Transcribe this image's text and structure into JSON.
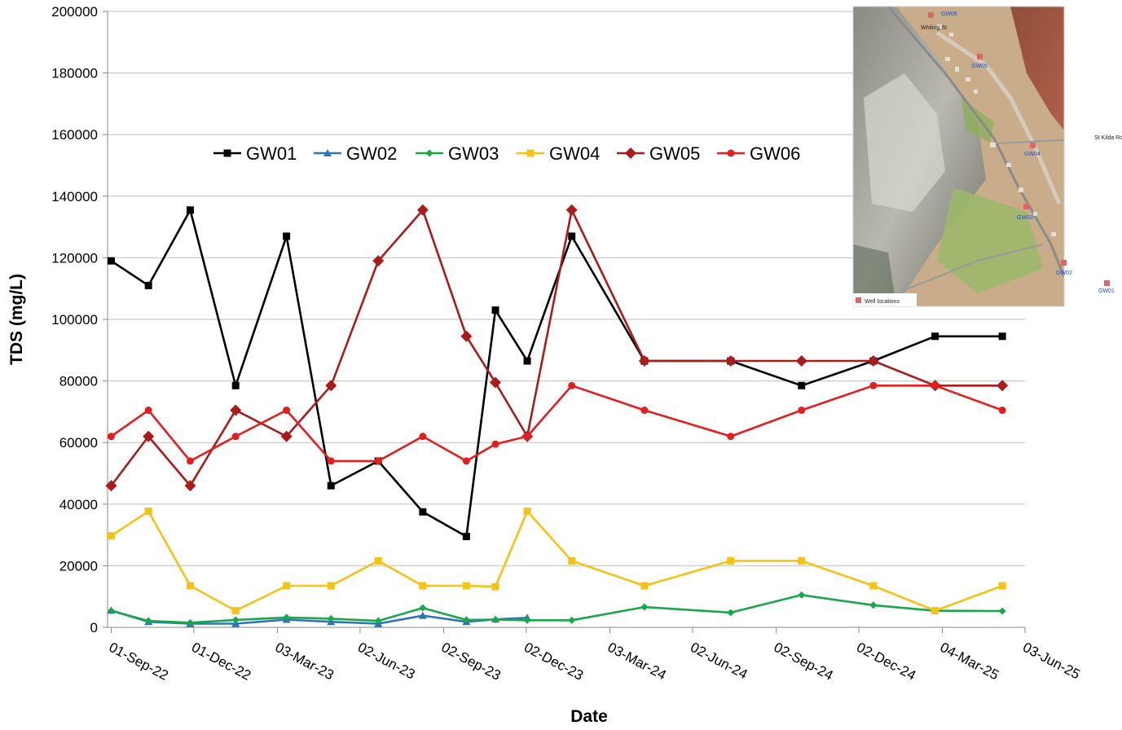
{
  "chart_data": {
    "type": "line",
    "xlabel": "Date",
    "ylabel": "TDS (mg/L)",
    "ylim": [
      0,
      200000
    ],
    "y_ticks": [
      0,
      20000,
      40000,
      60000,
      80000,
      100000,
      120000,
      140000,
      160000,
      180000,
      200000
    ],
    "x_ticks": [
      "01-Sep-22",
      "01-Dec-22",
      "03-Mar-23",
      "02-Jun-23",
      "02-Sep-23",
      "02-Dec-23",
      "03-Mar-24",
      "02-Jun-24",
      "02-Sep-24",
      "02-Dec-24",
      "04-Mar-25",
      "03-Jun-25"
    ],
    "x_tick_dates": [
      "2022-09-01",
      "2022-12-01",
      "2023-03-03",
      "2023-06-02",
      "2023-09-02",
      "2023-12-02",
      "2024-03-03",
      "2024-06-02",
      "2024-09-02",
      "2024-12-02",
      "2025-03-04",
      "2025-06-03"
    ],
    "xlim": [
      "2022-08-28",
      "2025-06-03"
    ],
    "grid": "horizontal",
    "legend_position": "top-center",
    "series": [
      {
        "name": "GW01",
        "color": "#000000",
        "marker": "square",
        "points": [
          [
            "2022-09-01",
            119000
          ],
          [
            "2022-10-12",
            111000
          ],
          [
            "2022-11-27",
            135500
          ],
          [
            "2023-01-16",
            78500
          ],
          [
            "2023-03-13",
            127000
          ],
          [
            "2023-05-01",
            46000
          ],
          [
            "2023-06-22",
            54000
          ],
          [
            "2023-08-10",
            37500
          ],
          [
            "2023-09-27",
            29500
          ],
          [
            "2023-10-29",
            103000
          ],
          [
            "2023-12-03",
            86500
          ],
          [
            "2024-01-21",
            127000
          ],
          [
            "2024-04-10",
            86500
          ],
          [
            "2024-07-14",
            86500
          ],
          [
            "2024-09-30",
            78500
          ],
          [
            "2024-12-18",
            86500
          ],
          [
            "2025-02-24",
            94500
          ],
          [
            "2025-05-09",
            94500
          ]
        ]
      },
      {
        "name": "GW02",
        "color": "#2e75b6",
        "marker": "triangle",
        "points": [
          [
            "2022-09-01",
            5500
          ],
          [
            "2022-10-12",
            1800
          ],
          [
            "2022-11-27",
            1200
          ],
          [
            "2023-01-16",
            1200
          ],
          [
            "2023-03-13",
            2500
          ],
          [
            "2023-05-01",
            1800
          ],
          [
            "2023-06-22",
            1200
          ],
          [
            "2023-08-10",
            3800
          ],
          [
            "2023-09-27",
            1800
          ],
          [
            "2023-10-29",
            2600
          ],
          [
            "2023-12-03",
            3100
          ]
        ]
      },
      {
        "name": "GW03",
        "color": "#1aa64c",
        "marker": "diamond",
        "points": [
          [
            "2022-09-01",
            5400
          ],
          [
            "2022-10-12",
            2100
          ],
          [
            "2022-11-27",
            1500
          ],
          [
            "2023-01-16",
            2400
          ],
          [
            "2023-03-13",
            3200
          ],
          [
            "2023-05-01",
            2800
          ],
          [
            "2023-06-22",
            2100
          ],
          [
            "2023-08-10",
            6300
          ],
          [
            "2023-09-27",
            2400
          ],
          [
            "2023-10-29",
            2500
          ],
          [
            "2023-12-03",
            2300
          ],
          [
            "2024-01-21",
            2300
          ],
          [
            "2024-04-10",
            6600
          ],
          [
            "2024-07-14",
            4800
          ],
          [
            "2024-09-30",
            10500
          ],
          [
            "2024-12-18",
            7200
          ],
          [
            "2025-02-24",
            5400
          ],
          [
            "2025-05-09",
            5300
          ]
        ]
      },
      {
        "name": "GW04",
        "color": "#f5c216",
        "marker": "square",
        "points": [
          [
            "2022-09-01",
            29700
          ],
          [
            "2022-10-12",
            37700
          ],
          [
            "2022-11-27",
            13500
          ],
          [
            "2023-01-16",
            5400
          ],
          [
            "2023-03-13",
            13500
          ],
          [
            "2023-05-01",
            13500
          ],
          [
            "2023-06-22",
            21600
          ],
          [
            "2023-08-10",
            13500
          ],
          [
            "2023-09-27",
            13500
          ],
          [
            "2023-10-29",
            13200
          ],
          [
            "2023-12-03",
            37700
          ],
          [
            "2024-01-21",
            21600
          ],
          [
            "2024-04-10",
            13500
          ],
          [
            "2024-07-14",
            21600
          ],
          [
            "2024-09-30",
            21600
          ],
          [
            "2024-12-18",
            13500
          ],
          [
            "2025-02-24",
            5400
          ],
          [
            "2025-05-09",
            13500
          ]
        ]
      },
      {
        "name": "GW05",
        "color": "#a81c1c",
        "marker": "diamond",
        "points": [
          [
            "2022-09-01",
            46000
          ],
          [
            "2022-10-12",
            62000
          ],
          [
            "2022-11-27",
            46000
          ],
          [
            "2023-01-16",
            70500
          ],
          [
            "2023-03-13",
            62000
          ],
          [
            "2023-05-01",
            78500
          ],
          [
            "2023-06-22",
            119000
          ],
          [
            "2023-08-10",
            135500
          ],
          [
            "2023-09-27",
            94500
          ],
          [
            "2023-10-29",
            79500
          ],
          [
            "2023-12-03",
            62000
          ],
          [
            "2024-01-21",
            135500
          ],
          [
            "2024-04-10",
            86500
          ],
          [
            "2024-07-14",
            86500
          ],
          [
            "2024-09-30",
            86500
          ],
          [
            "2024-12-18",
            86500
          ],
          [
            "2025-02-24",
            78500
          ],
          [
            "2025-05-09",
            78500
          ]
        ]
      },
      {
        "name": "GW06",
        "color": "#e41e1e",
        "marker": "circle",
        "points": [
          [
            "2022-09-01",
            62000
          ],
          [
            "2022-10-12",
            70500
          ],
          [
            "2022-11-27",
            54000
          ],
          [
            "2023-01-16",
            62000
          ],
          [
            "2023-03-13",
            70500
          ],
          [
            "2023-05-01",
            54000
          ],
          [
            "2023-06-22",
            54000
          ],
          [
            "2023-08-10",
            62000
          ],
          [
            "2023-09-27",
            54000
          ],
          [
            "2023-10-29",
            59500
          ],
          [
            "2023-12-03",
            62000
          ],
          [
            "2024-01-21",
            78500
          ],
          [
            "2024-04-10",
            70500
          ],
          [
            "2024-07-14",
            62000
          ],
          [
            "2024-09-30",
            70500
          ],
          [
            "2024-12-18",
            78500
          ],
          [
            "2025-02-24",
            78500
          ],
          [
            "2025-05-09",
            70500
          ]
        ]
      }
    ]
  },
  "inset_map": {
    "legend_label": "Well locations",
    "well_marker_color": "#e06666",
    "wells": [
      "GW06",
      "GW05",
      "GW04",
      "GW03",
      "GW02",
      "GW01"
    ],
    "street_labels": [
      "Whiting St",
      "St Kilda Rd"
    ]
  }
}
